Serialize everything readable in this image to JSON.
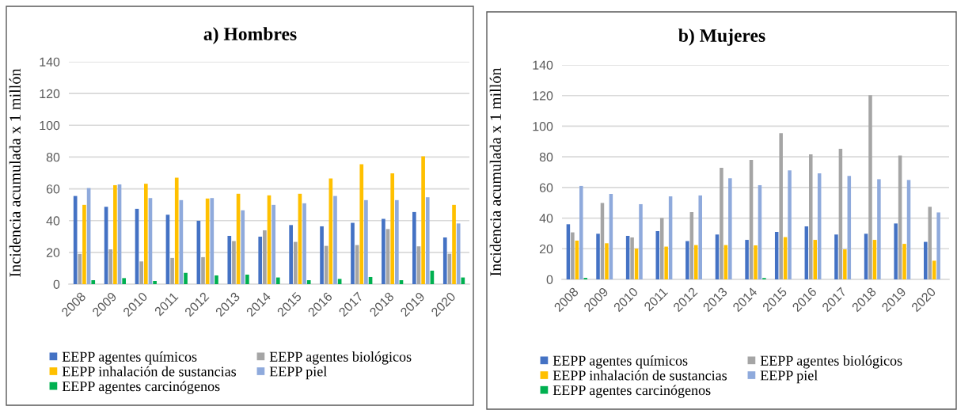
{
  "chart_data": [
    {
      "type": "bar",
      "title": "a) Hombres",
      "ylabel": "Incidencia acumulada x 1 millón",
      "categories": [
        "2008",
        "2009",
        "2010",
        "2011",
        "2012",
        "2013",
        "2014",
        "2015",
        "2016",
        "2017",
        "2018",
        "2019",
        "2020"
      ],
      "series": [
        {
          "name": "EEPP agentes químicos",
          "color": "#4472c4",
          "values": [
            55.5,
            48.7,
            47.4,
            43.7,
            39.9,
            30.4,
            29.9,
            37.2,
            36.4,
            38.6,
            41.1,
            45.4,
            29.4
          ]
        },
        {
          "name": "EEPP agentes biológicos",
          "color": "#a5a5a5",
          "values": [
            19.0,
            21.9,
            14.3,
            16.5,
            17.0,
            27.1,
            33.9,
            26.6,
            24.1,
            24.6,
            34.7,
            23.8,
            19.1
          ]
        },
        {
          "name": "EEPP inhalación de sustancias",
          "color": "#ffc000",
          "values": [
            49.9,
            62.3,
            63.2,
            67.0,
            53.9,
            56.9,
            55.9,
            56.9,
            66.5,
            75.5,
            69.8,
            80.5,
            49.9
          ]
        },
        {
          "name": "EEPP piel",
          "color": "#8faadc",
          "values": [
            60.5,
            62.8,
            54.2,
            52.9,
            54.2,
            46.5,
            49.9,
            50.9,
            55.5,
            52.9,
            52.9,
            54.7,
            38.2
          ]
        },
        {
          "name": "EEPP agentes carcinógenos",
          "color": "#00b050",
          "values": [
            2.5,
            3.8,
            2.0,
            7.1,
            5.5,
            6.0,
            4.2,
            2.5,
            3.3,
            4.5,
            2.5,
            8.5,
            4.2
          ]
        }
      ],
      "ylim": [
        0,
        140
      ],
      "yticks": [
        0,
        20,
        40,
        60,
        80,
        100,
        120,
        140
      ],
      "grid": "y",
      "legend": "bottom"
    },
    {
      "type": "bar",
      "title": "b) Mujeres",
      "ylabel": "Incidencia acumulada x 1 millón",
      "categories": [
        "2008",
        "2009",
        "2010",
        "2011",
        "2012",
        "2013",
        "2014",
        "2015",
        "2016",
        "2017",
        "2018",
        "2019",
        "2020"
      ],
      "series": [
        {
          "name": "EEPP agentes químicos",
          "color": "#4472c4",
          "values": [
            36.0,
            29.8,
            28.4,
            31.5,
            25.0,
            29.3,
            25.8,
            31.0,
            34.6,
            29.3,
            29.8,
            36.5,
            24.5
          ]
        },
        {
          "name": "EEPP agentes biológicos",
          "color": "#a5a5a5",
          "values": [
            30.7,
            49.9,
            27.4,
            40.1,
            43.9,
            72.8,
            78.0,
            95.4,
            81.6,
            85.2,
            120.2,
            80.8,
            47.4
          ]
        },
        {
          "name": "EEPP inhalación de sustancias",
          "color": "#ffc000",
          "values": [
            25.3,
            23.6,
            20.1,
            21.4,
            22.4,
            22.4,
            22.2,
            27.6,
            25.8,
            19.6,
            25.8,
            23.2,
            12.2
          ]
        },
        {
          "name": "EEPP piel",
          "color": "#8faadc",
          "values": [
            61.0,
            55.8,
            49.1,
            54.2,
            54.8,
            66.0,
            61.5,
            71.1,
            69.2,
            67.5,
            65.4,
            64.9,
            43.7
          ]
        },
        {
          "name": "EEPP agentes carcinógenos",
          "color": "#00b050",
          "values": [
            1.0,
            0,
            0,
            0,
            0,
            0,
            0.9,
            0,
            0,
            0,
            0,
            0,
            0
          ]
        }
      ],
      "ylim": [
        0,
        140
      ],
      "yticks": [
        0,
        20,
        40,
        60,
        80,
        100,
        120,
        140
      ],
      "grid": "y",
      "legend": "bottom"
    }
  ]
}
